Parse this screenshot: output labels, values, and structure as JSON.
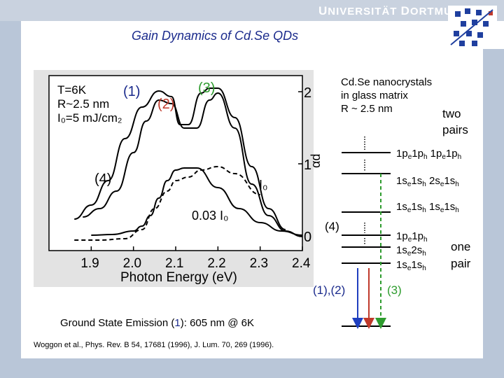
{
  "header": {
    "university_first": "U",
    "university_rest": "NIVERSITÄT",
    "city_first": "D",
    "city_rest": "ORTMUND",
    "slide_title": "Gain Dynamics of Cd.Se QDs"
  },
  "plot": {
    "legend_T": "T=6K",
    "legend_R": "R~2.5 nm",
    "legend_I0": "I₀=5 mJ/cm₂",
    "curve_1": "(1)",
    "curve_2": "(2)",
    "curve_3": "(3)",
    "curve_4": "(4)",
    "label_I0": "I₀",
    "label_003": "0.03 I₀",
    "ylabel": "αd",
    "xlabel": "Photon Energy (eV)",
    "ytick_2": "2",
    "ytick_1": "1",
    "ytick_0": "0",
    "xticks": [
      "1.9",
      "2.0",
      "2.1",
      "2.2",
      "2.3",
      "2.4"
    ]
  },
  "chart_data": {
    "type": "line",
    "xlabel": "Photon Energy (eV)",
    "ylabel": "αd",
    "xlim": [
      1.8,
      2.4
    ],
    "ylim": [
      -0.2,
      2.3
    ],
    "series": [
      {
        "name": "(1)",
        "x": [
          1.9,
          1.95,
          2.0,
          2.02,
          2.04,
          2.06,
          2.08,
          2.1,
          2.12,
          2.15,
          2.2,
          2.25,
          2.3,
          2.35,
          2.4
        ],
        "y": [
          0.02,
          0.03,
          0.08,
          0.15,
          0.3,
          0.55,
          0.8,
          0.95,
          0.98,
          0.98,
          0.7,
          0.4,
          0.2,
          0.08,
          0.02
        ]
      },
      {
        "name": "(2)",
        "x": [
          1.88,
          1.92,
          1.96,
          2.0,
          2.03,
          2.06,
          2.09,
          2.12,
          2.15,
          2.18,
          2.2,
          2.24,
          2.28,
          2.32,
          2.36,
          2.4
        ],
        "y": [
          0.28,
          0.4,
          0.65,
          1.2,
          1.65,
          1.95,
          1.9,
          1.55,
          1.55,
          1.95,
          2.05,
          1.55,
          0.75,
          0.3,
          0.08,
          0.0
        ]
      },
      {
        "name": "(3)",
        "x": [
          1.86,
          1.9,
          1.94,
          1.98,
          2.02,
          2.06,
          2.09,
          2.11,
          2.13,
          2.16,
          2.18,
          2.2,
          2.24,
          2.28,
          2.32,
          2.36
        ],
        "y": [
          0.25,
          0.45,
          0.8,
          1.4,
          1.85,
          2.08,
          2.0,
          1.6,
          1.6,
          2.05,
          2.12,
          2.12,
          1.7,
          1.0,
          0.4,
          0.1
        ]
      },
      {
        "name": "(4)",
        "x": [
          1.86,
          1.92,
          1.98,
          2.02,
          2.05,
          2.08,
          2.1,
          2.13,
          2.16,
          2.2,
          2.24,
          2.3
        ],
        "y": [
          -0.05,
          -0.05,
          -0.03,
          0.1,
          0.4,
          0.65,
          0.8,
          0.85,
          0.95,
          1.0,
          0.9,
          0.6
        ]
      }
    ]
  },
  "diagram": {
    "title_line1": "Cd.Se nanocrystals",
    "title_line2": "in glass matrix",
    "title_line3": "R ~ 2.5 nm",
    "two_line1": "two",
    "two_line2": "pairs",
    "level_1pe1ph_1pe1ph": "1pe1ph 1pe1ph",
    "level_1se1sh_2se1sh": "1se1sh 2se1sh",
    "level_1se1sh_1se1sh": "1se1sh 1se1sh",
    "level_1pe1ph": "1pe1ph",
    "level_1se2sh": "1se2sh",
    "level_1se1sh": "1se1sh",
    "one_line1": "one",
    "one_line2": "pair",
    "label_4": "(4)",
    "label_12": "(1),(2)",
    "label_3": "(3)",
    "label_I0": "I₀"
  },
  "footer": {
    "emission_prefix": "Ground State Emission (",
    "emission_num": "1",
    "emission_suffix": "): 605 nm @ 6K",
    "citation": "Woggon et al., Phys. Rev. B 54, 17681 (1996), J. Lum. 70, 269 (1996)."
  },
  "colors": {
    "title": "#1a2a8c",
    "curve_2": "#c0392b",
    "curve_3": "#2e9c2e",
    "arrow_blue": "#1f3fbf",
    "arrow_red": "#c0392b",
    "arrow_green": "#2e9c2e",
    "plot_bg": "#e3e3e3",
    "band": "#b9c6d8"
  }
}
